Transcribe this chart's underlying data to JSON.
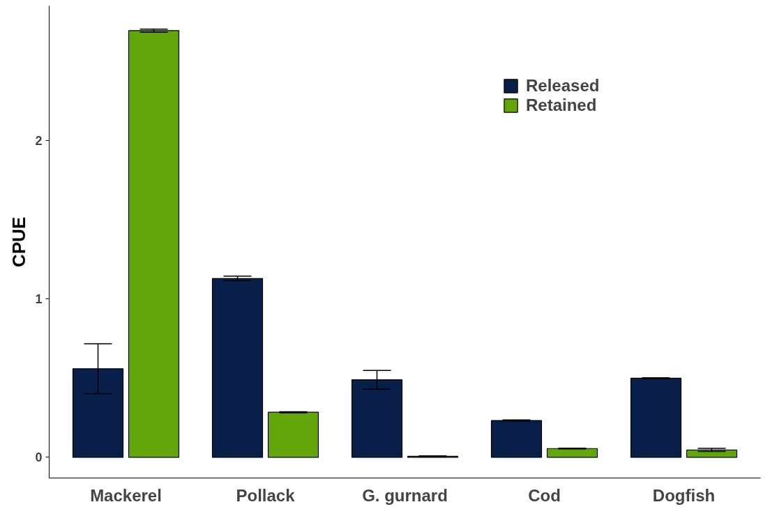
{
  "chart_data": {
    "type": "bar",
    "ylabel": "CPUE",
    "categories": [
      "Mackerel",
      "Pollack",
      "G. gurnard",
      "Cod",
      "Dogfish"
    ],
    "series": [
      {
        "name": "Released",
        "color": "#081f4a",
        "values": [
          0.56,
          1.13,
          0.49,
          0.233,
          0.5
        ],
        "errors": [
          0.157,
          0.014,
          0.059,
          0.003,
          0.003
        ]
      },
      {
        "name": "Retained",
        "color": "#62a60c",
        "values": [
          2.694,
          0.285,
          0.007,
          0.056,
          0.047
        ],
        "errors": [
          0.01,
          0.003,
          0.003,
          0.002,
          0.01
        ]
      }
    ],
    "ylim": [
      -0.13,
      2.85
    ],
    "yticks": [
      0,
      1,
      2
    ],
    "grid": false,
    "legend": "top right"
  }
}
